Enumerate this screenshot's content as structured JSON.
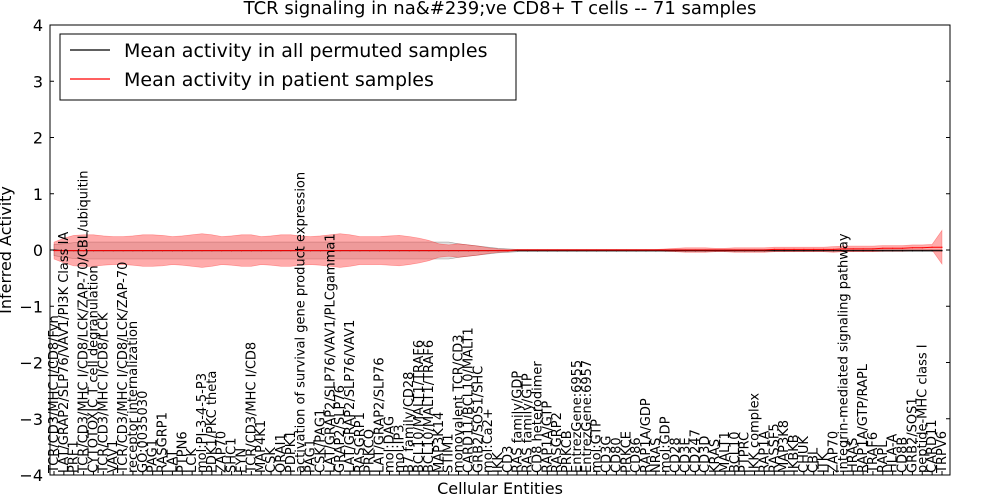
{
  "chart_data": {
    "type": "line",
    "title": "TCR signaling in na&#239;ve CD8+ T cells -- 71 samples",
    "xlabel": "Cellular Entities",
    "ylabel": "Inferred Activity",
    "ylim": [
      -4,
      4
    ],
    "yticks": [
      4,
      3,
      2,
      1,
      0,
      -1,
      -2,
      -3,
      -4
    ],
    "legend": {
      "position": "top-left",
      "entries": [
        {
          "label": "Mean activity in all permuted samples",
          "color": "#000000"
        },
        {
          "label": "Mean activity in patient samples",
          "color": "#ff0000"
        }
      ]
    },
    "categories": [
      "TCR/CD3/MHC I/CD8/Fyn",
      "LAT/GRAP2/SLP76/VAV1/PI3K Class IA",
      "PRF1",
      "TCR/CD3/MHC I/CD8/LCK/ZAP-70/CBL/ubiquitin",
      "CYTOTOXIC T cell degranulation",
      "TCR/CD3/MHC I/CD8/LCK",
      "VAV1",
      "TCR/CD3/MHC I/CD8/LCK/ZAP-70",
      "receptor internalization",
      "GO:0035030",
      "PAG1",
      "RASGRP1",
      "LAT",
      "PTPN6",
      "LCK",
      "mol:PI-3-4-5-P3",
      "PDK1/PKC theta",
      "ZAP70",
      "SHC1",
      "FYN",
      "TCR/CD3/MHC I/CD8",
      "MAP4K1",
      "CSK",
      "ORAI1",
      "PDPK1",
      "activation of survival gene product expression",
      "PAG1",
      "CSK/PAG1",
      "LAT/GRAP2/SLP76/VAV1/PLCgamma1",
      "GRAP2/SLP76",
      "LAT/GRAP2/SLP76/VAV1",
      "RASGRP1",
      "PRKCQ",
      "LAT/GRAP2/SLP76",
      "mol:DAG",
      "mol:IP3",
      "B7 family/CD28",
      "BCL10/MALT1/TRAF6",
      "BCL10/MALT1/TRAF6",
      "MAP3K14",
      "STIM1",
      "monovalent TCR/CD3",
      "CARD11/BCL10/MALT1",
      "GRB2/SOS1/SHC",
      "mol:Ca2+",
      "IKK",
      "CD3",
      "RAS family/GDP",
      "RAS family/GTP",
      "CD8 heterodimer",
      "RAP1A/GTP",
      "RASGRP2",
      "PRKCB",
      "EntrezGene:6955",
      "EntrezGene:6957",
      "mol:GTP",
      "CD3G",
      "CD80",
      "PRKCE",
      "CD86",
      "RAP1A/GDP",
      "NRAS",
      "mol:GDP",
      "CD28",
      "CD3E",
      "CD247",
      "CD3D",
      "KRAS",
      "MALT1",
      "BCL10",
      "PTPRC",
      "IKK complex",
      "RAP1A",
      "RASSF5",
      "MAP3K8",
      "IKBKB",
      "CHUK",
      "CBL",
      "ITK",
      "ZAP70",
      "integrin-mediated signaling pathway",
      "HRAS",
      "RAP1A/GTP/RAPL",
      "TRAF6",
      "RAPL",
      "HLA-A",
      "CD8B",
      "GRB2/SOS1",
      "peptide-MHC class I",
      "CARD11",
      "TRPV6"
    ],
    "series": [
      {
        "name": "Mean activity in all permuted samples",
        "color": "#000000",
        "values": [
          0.0,
          -0.01,
          -0.01,
          -0.01,
          -0.01,
          -0.01,
          -0.01,
          -0.01,
          -0.01,
          -0.01,
          -0.01,
          -0.01,
          -0.01,
          -0.01,
          -0.01,
          -0.01,
          -0.01,
          -0.01,
          -0.01,
          -0.01,
          -0.01,
          -0.01,
          -0.01,
          -0.01,
          -0.01,
          -0.01,
          -0.01,
          -0.01,
          -0.01,
          -0.01,
          -0.01,
          -0.01,
          -0.01,
          -0.01,
          -0.01,
          -0.01,
          -0.01,
          -0.01,
          -0.01,
          -0.01,
          -0.01,
          -0.01,
          -0.01,
          -0.01,
          -0.01,
          -0.01,
          -0.01,
          -0.01,
          -0.01,
          -0.01,
          -0.01,
          -0.01,
          -0.01,
          -0.01,
          -0.01,
          -0.01,
          -0.01,
          -0.01,
          -0.01,
          -0.01,
          -0.01,
          -0.01,
          -0.01,
          -0.01,
          -0.01,
          -0.01,
          -0.01,
          -0.01,
          -0.01,
          -0.01,
          -0.01,
          -0.01,
          -0.01,
          -0.01,
          -0.01,
          -0.01,
          -0.01,
          -0.01,
          -0.01,
          -0.01,
          -0.01,
          -0.01,
          -0.01,
          -0.01,
          -0.01,
          -0.01,
          -0.01,
          -0.01,
          -0.01,
          -0.01,
          -0.01
        ],
        "spread": [
          0.1,
          0.12,
          0.14,
          0.15,
          0.15,
          0.15,
          0.15,
          0.15,
          0.15,
          0.15,
          0.15,
          0.15,
          0.15,
          0.15,
          0.15,
          0.15,
          0.15,
          0.15,
          0.15,
          0.15,
          0.15,
          0.15,
          0.15,
          0.15,
          0.15,
          0.15,
          0.15,
          0.15,
          0.15,
          0.15,
          0.15,
          0.15,
          0.15,
          0.15,
          0.15,
          0.15,
          0.15,
          0.15,
          0.15,
          0.15,
          0.15,
          0.12,
          0.1,
          0.08,
          0.06,
          0.04,
          0.03,
          0.02,
          0.02,
          0.02,
          0.02,
          0.02,
          0.02,
          0.02,
          0.02,
          0.02,
          0.02,
          0.02,
          0.02,
          0.02,
          0.02,
          0.02,
          0.02,
          0.02,
          0.02,
          0.02,
          0.02,
          0.02,
          0.02,
          0.02,
          0.02,
          0.02,
          0.02,
          0.02,
          0.02,
          0.02,
          0.02,
          0.02,
          0.02,
          0.02,
          0.02,
          0.02,
          0.02,
          0.02,
          0.02,
          0.02,
          0.02,
          0.02,
          0.02,
          0.02,
          0.02
        ]
      },
      {
        "name": "Mean activity in patient samples",
        "color": "#ff0000",
        "values": [
          -0.01,
          -0.01,
          -0.01,
          -0.01,
          -0.01,
          -0.01,
          -0.01,
          -0.01,
          -0.01,
          -0.01,
          -0.01,
          -0.01,
          -0.01,
          -0.01,
          -0.01,
          -0.01,
          -0.01,
          -0.01,
          -0.01,
          -0.01,
          -0.01,
          -0.01,
          -0.01,
          -0.01,
          -0.01,
          -0.01,
          -0.01,
          -0.01,
          -0.01,
          -0.01,
          -0.01,
          -0.01,
          -0.01,
          -0.01,
          -0.01,
          -0.01,
          -0.01,
          -0.01,
          -0.01,
          -0.01,
          -0.01,
          -0.01,
          -0.01,
          -0.01,
          -0.01,
          -0.01,
          -0.01,
          0.0,
          0.0,
          0.0,
          0.0,
          0.0,
          0.0,
          0.0,
          0.0,
          0.0,
          0.0,
          0.0,
          0.0,
          0.0,
          0.0,
          0.0,
          0.0,
          0.0,
          0.0,
          0.0,
          0.0,
          0.0,
          0.0,
          0.0,
          0.0,
          0.0,
          0.0,
          0.01,
          0.01,
          0.01,
          0.01,
          0.01,
          0.01,
          0.01,
          0.02,
          0.02,
          0.02,
          0.02,
          0.03,
          0.03,
          0.03,
          0.04,
          0.04,
          0.05,
          0.05
        ],
        "spread": [
          0.15,
          0.22,
          0.27,
          0.28,
          0.28,
          0.26,
          0.25,
          0.25,
          0.26,
          0.28,
          0.28,
          0.27,
          0.25,
          0.26,
          0.28,
          0.3,
          0.28,
          0.25,
          0.26,
          0.28,
          0.28,
          0.25,
          0.26,
          0.28,
          0.28,
          0.26,
          0.25,
          0.26,
          0.28,
          0.3,
          0.28,
          0.25,
          0.25,
          0.25,
          0.26,
          0.27,
          0.25,
          0.22,
          0.18,
          0.12,
          0.1,
          0.12,
          0.1,
          0.08,
          0.05,
          0.03,
          0.02,
          0.01,
          0.01,
          0.01,
          0.01,
          0.01,
          0.01,
          0.01,
          0.01,
          0.01,
          0.01,
          0.01,
          0.01,
          0.01,
          0.01,
          0.01,
          0.02,
          0.03,
          0.04,
          0.04,
          0.04,
          0.03,
          0.03,
          0.04,
          0.04,
          0.04,
          0.04,
          0.04,
          0.04,
          0.04,
          0.04,
          0.04,
          0.04,
          0.05,
          0.05,
          0.05,
          0.05,
          0.05,
          0.05,
          0.05,
          0.05,
          0.05,
          0.05,
          0.05,
          0.3
        ]
      }
    ]
  }
}
